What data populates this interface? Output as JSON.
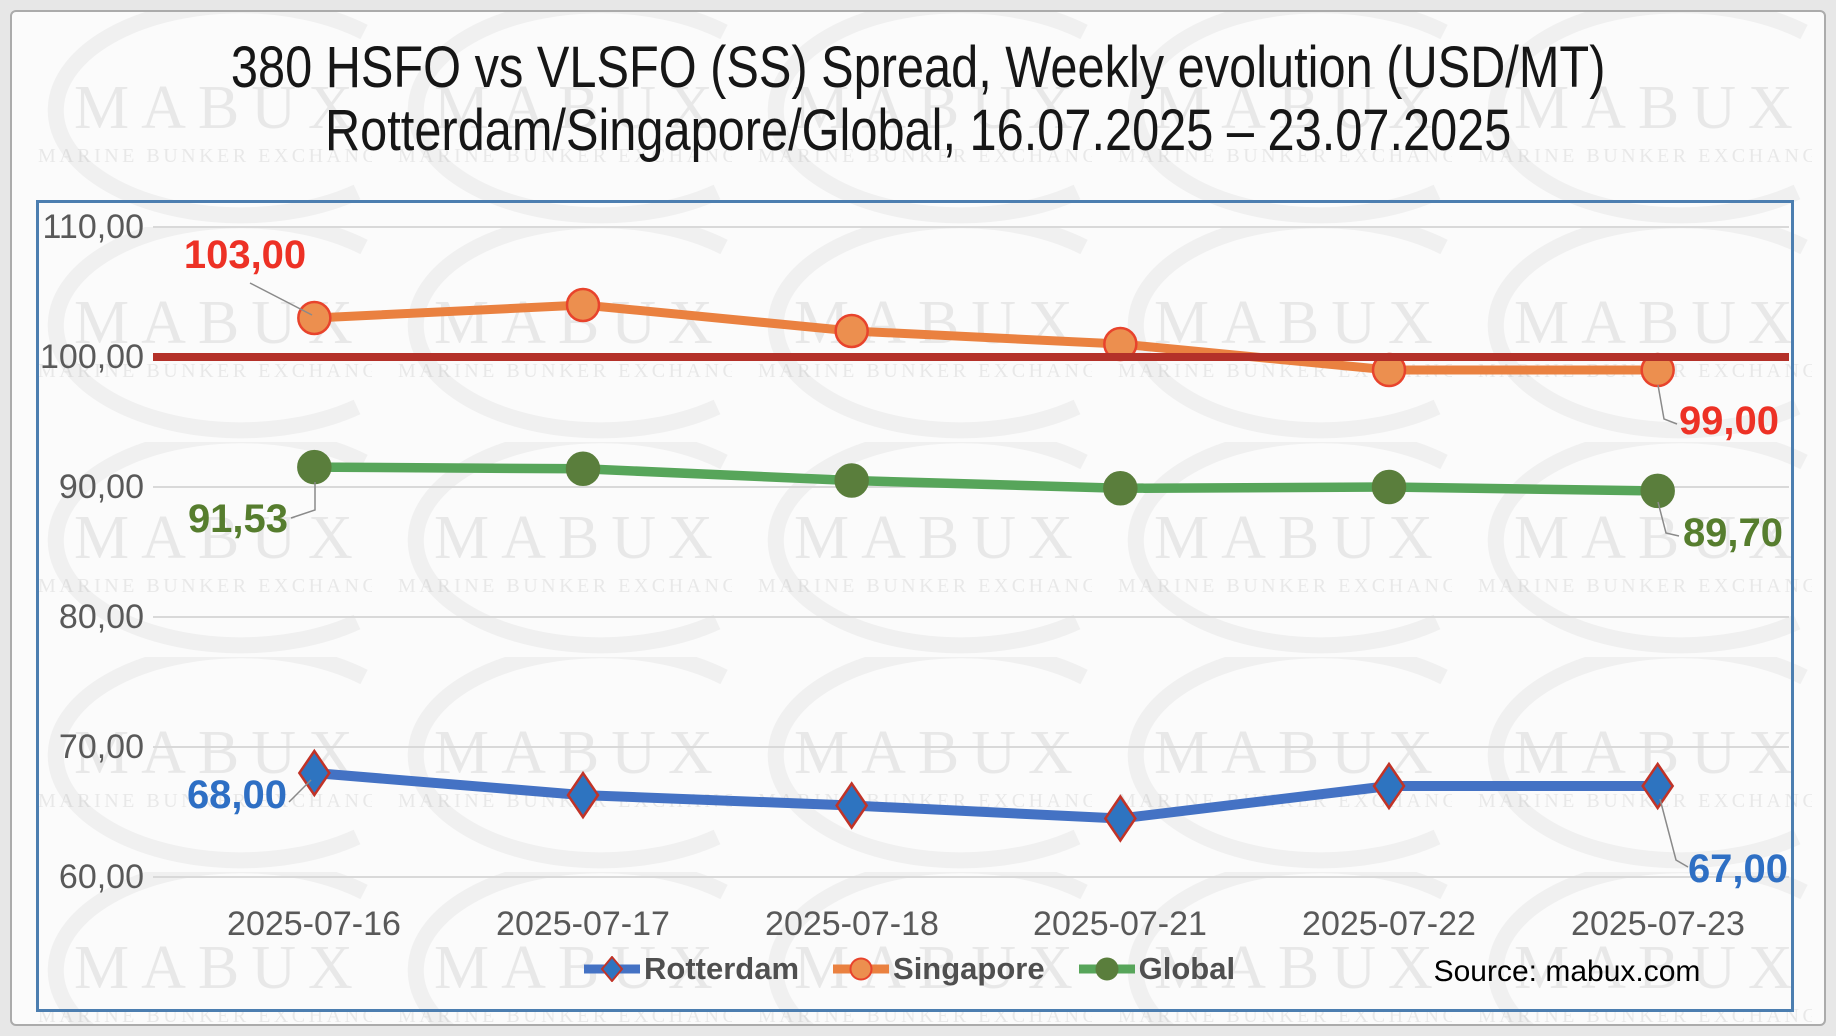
{
  "title": {
    "line1": "380 HSFO vs VLSFO (SS) Spread, Weekly evolution (USD/MT)",
    "line2": "Rotterdam/Singapore/Global, 16.07.2025 – 23.07.2025"
  },
  "source": "Source: mabux.com",
  "watermark": {
    "brand": "MABUX",
    "tagline": "MARINE BUNKER EXCHANGE"
  },
  "chart_data": {
    "type": "line",
    "categories": [
      "2025-07-16",
      "2025-07-17",
      "2025-07-18",
      "2025-07-21",
      "2025-07-22",
      "2025-07-23"
    ],
    "series": [
      {
        "name": "Rotterdam",
        "values": [
          68.0,
          66.3,
          65.5,
          64.5,
          67.0,
          67.0
        ],
        "color": "#4472c4",
        "marker": "diamond",
        "marker_fill": "#2e74c0",
        "marker_stroke": "#c13327"
      },
      {
        "name": "Singapore",
        "values": [
          103.0,
          104.0,
          102.0,
          101.0,
          99.0,
          99.0
        ],
        "color": "#ea8140",
        "marker": "circle",
        "marker_fill": "#ec8f4f",
        "marker_stroke": "#e8432c"
      },
      {
        "name": "Global",
        "values": [
          91.53,
          91.4,
          90.5,
          89.9,
          90.0,
          89.7
        ],
        "color": "#57a55a",
        "marker": "circle",
        "marker_fill": "#5a7e3c",
        "marker_stroke": "#5a7e3c"
      }
    ],
    "reference_line": {
      "value": 100,
      "color": "#b43129"
    },
    "ylim": [
      60,
      110
    ],
    "ytick_step": 10,
    "yticks": [
      "110,00",
      "100,00",
      "90,00",
      "80,00",
      "70,00",
      "60,00"
    ],
    "grid": "horizontal",
    "legend_position": "bottom",
    "point_labels": [
      {
        "series": "Singapore",
        "point": "first",
        "text": "103,00",
        "color": "#ed3125"
      },
      {
        "series": "Global",
        "point": "first",
        "text": "91,53",
        "color": "#567d2e"
      },
      {
        "series": "Rotterdam",
        "point": "first",
        "text": "68,00",
        "color": "#2e6fc4"
      },
      {
        "series": "Singapore",
        "point": "last",
        "text": "99,00",
        "color": "#ed3125"
      },
      {
        "series": "Global",
        "point": "last",
        "text": "89,70",
        "color": "#567d2e"
      },
      {
        "series": "Rotterdam",
        "point": "last",
        "text": "67,00",
        "color": "#2e6fc4"
      }
    ]
  }
}
